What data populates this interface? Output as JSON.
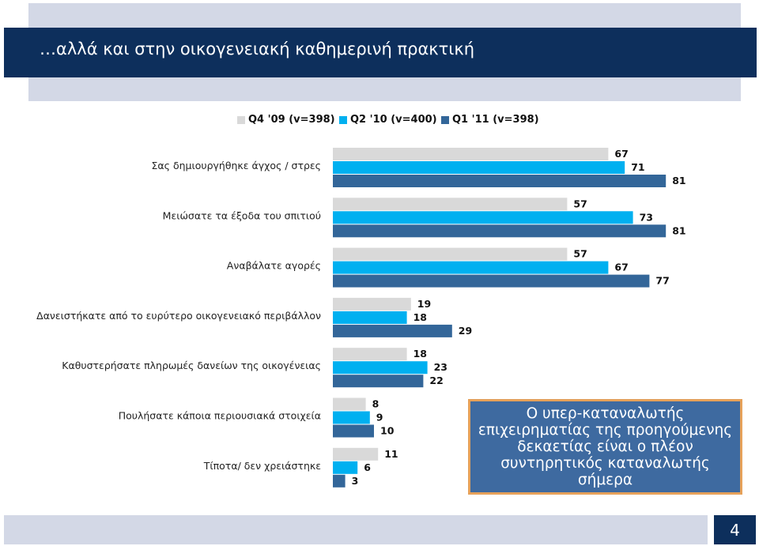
{
  "slide": {
    "title": "…αλλά και στην οικογενειακή καθημερινή πρακτική",
    "callout": "Ο υπερ-καταναλωτής επιχειρηματίας της προηγούμενης δεκαετίας είναι ο πλέον συντηρητικός καταναλωτής σήμερα",
    "page_number": "4"
  },
  "colors": {
    "title_bar": "#0d2f5c",
    "band": "#d3d8e6",
    "callout_bg": "#3e6aa0",
    "callout_border": "#e6a15a"
  },
  "chart_data": {
    "type": "bar",
    "orientation": "horizontal",
    "title": "",
    "xlabel": "",
    "ylabel": "",
    "xlim": [
      0,
      100
    ],
    "grid": false,
    "legend_position": "top",
    "categories": [
      "Σας δημιουργήθηκε άγχος / στρες",
      "Μειώσατε τα έξοδα του σπιτιού",
      "Αναβάλατε αγορές",
      "Δανειστήκατε από το ευρύτερο οικογενειακό περιβάλλον",
      "Καθυστερήσατε πληρωμές δανείων της οικογένειας",
      "Πουλήσατε κάποια περιουσιακά στοιχεία",
      "Τίποτα/ δεν χρειάστηκε"
    ],
    "series": [
      {
        "name": "Q4 '09 (v=398)",
        "color": "#d9d9d9",
        "values": [
          67,
          57,
          57,
          19,
          18,
          8,
          11
        ]
      },
      {
        "name": "Q2 '10 (v=400)",
        "color": "#00b0f0",
        "values": [
          71,
          73,
          67,
          18,
          23,
          9,
          6
        ]
      },
      {
        "name": "Q1 '11 (v=398)",
        "color": "#336699",
        "values": [
          81,
          81,
          77,
          29,
          22,
          10,
          3
        ]
      }
    ]
  }
}
